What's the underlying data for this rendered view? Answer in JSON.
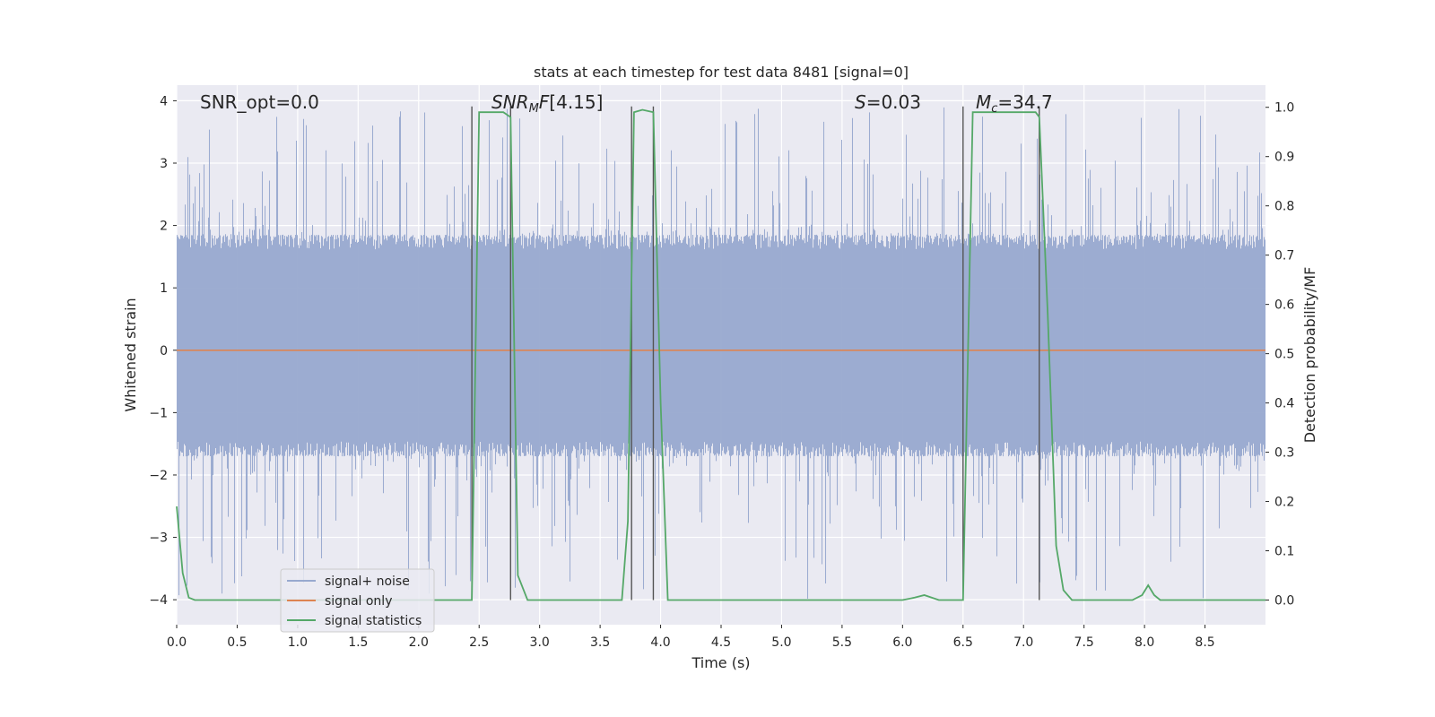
{
  "chart_data": {
    "type": "line",
    "title": "stats at each timestep for test data 8481 [signal=0]",
    "xlabel": "Time (s)",
    "ylabel_left": "Whitened strain",
    "ylabel_right": "Detection probability/MF",
    "xlim": [
      0,
      9
    ],
    "ylim_left": [
      -4.4,
      4.25
    ],
    "ylim_right": [
      -0.05,
      1.045
    ],
    "x_ticks": [
      "0.0",
      "0.5",
      "1.0",
      "1.5",
      "2.0",
      "2.5",
      "3.0",
      "3.5",
      "4.0",
      "4.5",
      "5.0",
      "5.5",
      "6.0",
      "6.5",
      "7.0",
      "7.5",
      "8.0",
      "8.5"
    ],
    "y_ticks_left": [
      "4",
      "3",
      "2",
      "1",
      "0",
      "−1",
      "−2",
      "−3",
      "−4"
    ],
    "y_ticks_right": [
      "1.0",
      "0.9",
      "0.8",
      "0.7",
      "0.6",
      "0.5",
      "0.4",
      "0.3",
      "0.2",
      "0.1",
      "0.0"
    ],
    "annotations": {
      "snr_opt": "SNR_opt=0.0",
      "snr_mf": "[4.15]",
      "s_value": "=0.03",
      "mc_value": "=34.7"
    },
    "legend": {
      "placement": "lower-left",
      "entries": [
        "signal+ noise",
        "signal only",
        "signal statistics"
      ]
    },
    "colors": {
      "noise": "#98a9cf",
      "signal_only": "#dd8452",
      "statistics": "#55a868",
      "vlines": "#555555",
      "plot_bg": "#eaeaf2",
      "grid": "#ffffff"
    },
    "noise_envelope": {
      "core_min": -1.7,
      "core_max": 1.85,
      "peak_max": 3.9,
      "peak_min": -4.0
    },
    "signal_only": {
      "value": 0.0
    },
    "vertical_lines": [
      2.44,
      2.76,
      3.76,
      3.94,
      6.5,
      7.13
    ],
    "series": [
      {
        "name": "signal statistics",
        "axis": "right",
        "x": [
          0.0,
          0.05,
          0.1,
          0.15,
          0.2,
          0.3,
          0.5,
          1.0,
          1.5,
          2.0,
          2.3,
          2.44,
          2.5,
          2.7,
          2.76,
          2.82,
          2.9,
          3.0,
          3.3,
          3.5,
          3.68,
          3.73,
          3.78,
          3.85,
          3.94,
          4.0,
          4.06,
          4.5,
          5.0,
          5.5,
          6.0,
          6.1,
          6.18,
          6.3,
          6.5,
          6.58,
          6.7,
          7.0,
          7.1,
          7.13,
          7.2,
          7.27,
          7.33,
          7.4,
          7.6,
          7.9,
          7.98,
          8.03,
          8.08,
          8.13,
          8.2,
          8.5,
          9.0
        ],
        "values": [
          0.19,
          0.055,
          0.005,
          0.0,
          0.0,
          0.0,
          0.0,
          0.0,
          0.0,
          0.0,
          0.0,
          0.0,
          0.99,
          0.99,
          0.98,
          0.05,
          0.0,
          0.0,
          0.0,
          0.0,
          0.0,
          0.16,
          0.99,
          0.995,
          0.99,
          0.4,
          0.0,
          0.0,
          0.0,
          0.0,
          0.0,
          0.005,
          0.01,
          0.0,
          0.0,
          0.99,
          0.99,
          0.99,
          0.99,
          0.98,
          0.58,
          0.11,
          0.02,
          0.0,
          0.0,
          0.0,
          0.01,
          0.03,
          0.01,
          0.0,
          0.0,
          0.0,
          0.0
        ]
      }
    ]
  }
}
